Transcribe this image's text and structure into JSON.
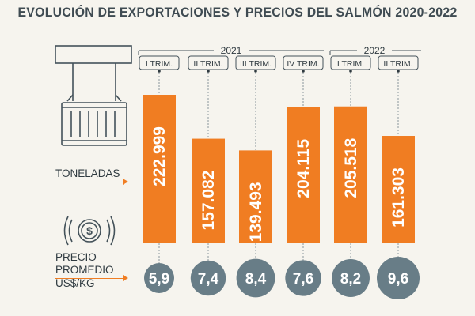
{
  "title": "EVOLUCIÓN DE EXPORTACIONES Y PRECIOS DEL SALMÓN 2020-2022",
  "labels": {
    "tons": "TONELADAS",
    "price_lines": [
      "PRECIO",
      "PROMEDIO",
      "US$/KG"
    ]
  },
  "icons": [
    "shipping-container-icon",
    "dollar-coin-icon"
  ],
  "colors": {
    "bar": "#f07d22",
    "circle": "#687d87",
    "dark_text": "#2f3a40",
    "title": "#3f4b52"
  },
  "chart_data": {
    "type": "bar",
    "year_groups": [
      {
        "year": "2021",
        "categories": [
          "I TRIM.",
          "II TRIM.",
          "III TRIM.",
          "IV TRIM."
        ]
      },
      {
        "year": "2022",
        "categories": [
          "I TRIM.",
          "II TRIM."
        ]
      }
    ],
    "categories": [
      "I TRIM.",
      "II TRIM.",
      "III TRIM.",
      "IV TRIM.",
      "I TRIM.",
      "II TRIM."
    ],
    "series": [
      {
        "name": "TONELADAS",
        "values": [
          222999,
          157082,
          139493,
          204115,
          205518,
          161303
        ],
        "labels": [
          "222.999",
          "157.082",
          "139.493",
          "204.115",
          "205.518",
          "161.303"
        ]
      },
      {
        "name": "PRECIO PROMEDIO US$/KG",
        "values": [
          5.9,
          7.4,
          8.4,
          7.6,
          8.2,
          9.6
        ],
        "labels": [
          "5,9",
          "7,4",
          "8,4",
          "7,6",
          "8,2",
          "9,6"
        ]
      }
    ],
    "ylim": [
      0,
      240000
    ],
    "grid": false,
    "legend": "none"
  }
}
